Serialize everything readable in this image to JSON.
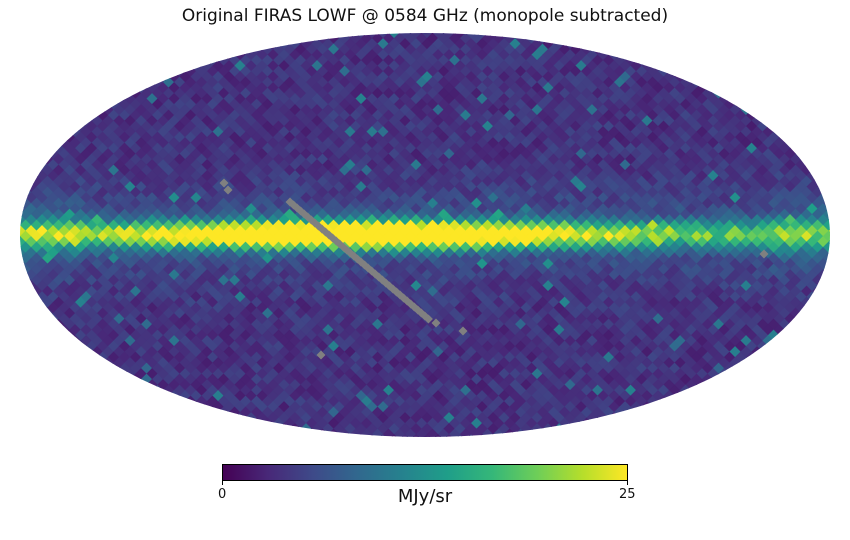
{
  "title": "Original FIRAS LOWF @ 0584 GHz (monopole subtracted)",
  "map": {
    "projection": "mollweide",
    "quantity": "sky brightness",
    "masked_color": "#808080",
    "features": {
      "galactic_plane": "bright band along equator, saturated (>=25) near galactic center",
      "masked_region": "diagonal grey stripe of missing pixels"
    }
  },
  "colorbar": {
    "min": 0,
    "max": 25,
    "min_label": "0",
    "max_label": "25",
    "unit_label": "MJy/sr",
    "colormap": "viridis",
    "stops": [
      "#440154",
      "#482878",
      "#3e4a89",
      "#31688e",
      "#26828e",
      "#1f9e89",
      "#35b779",
      "#6ece58",
      "#b5de2b",
      "#fde725"
    ]
  }
}
